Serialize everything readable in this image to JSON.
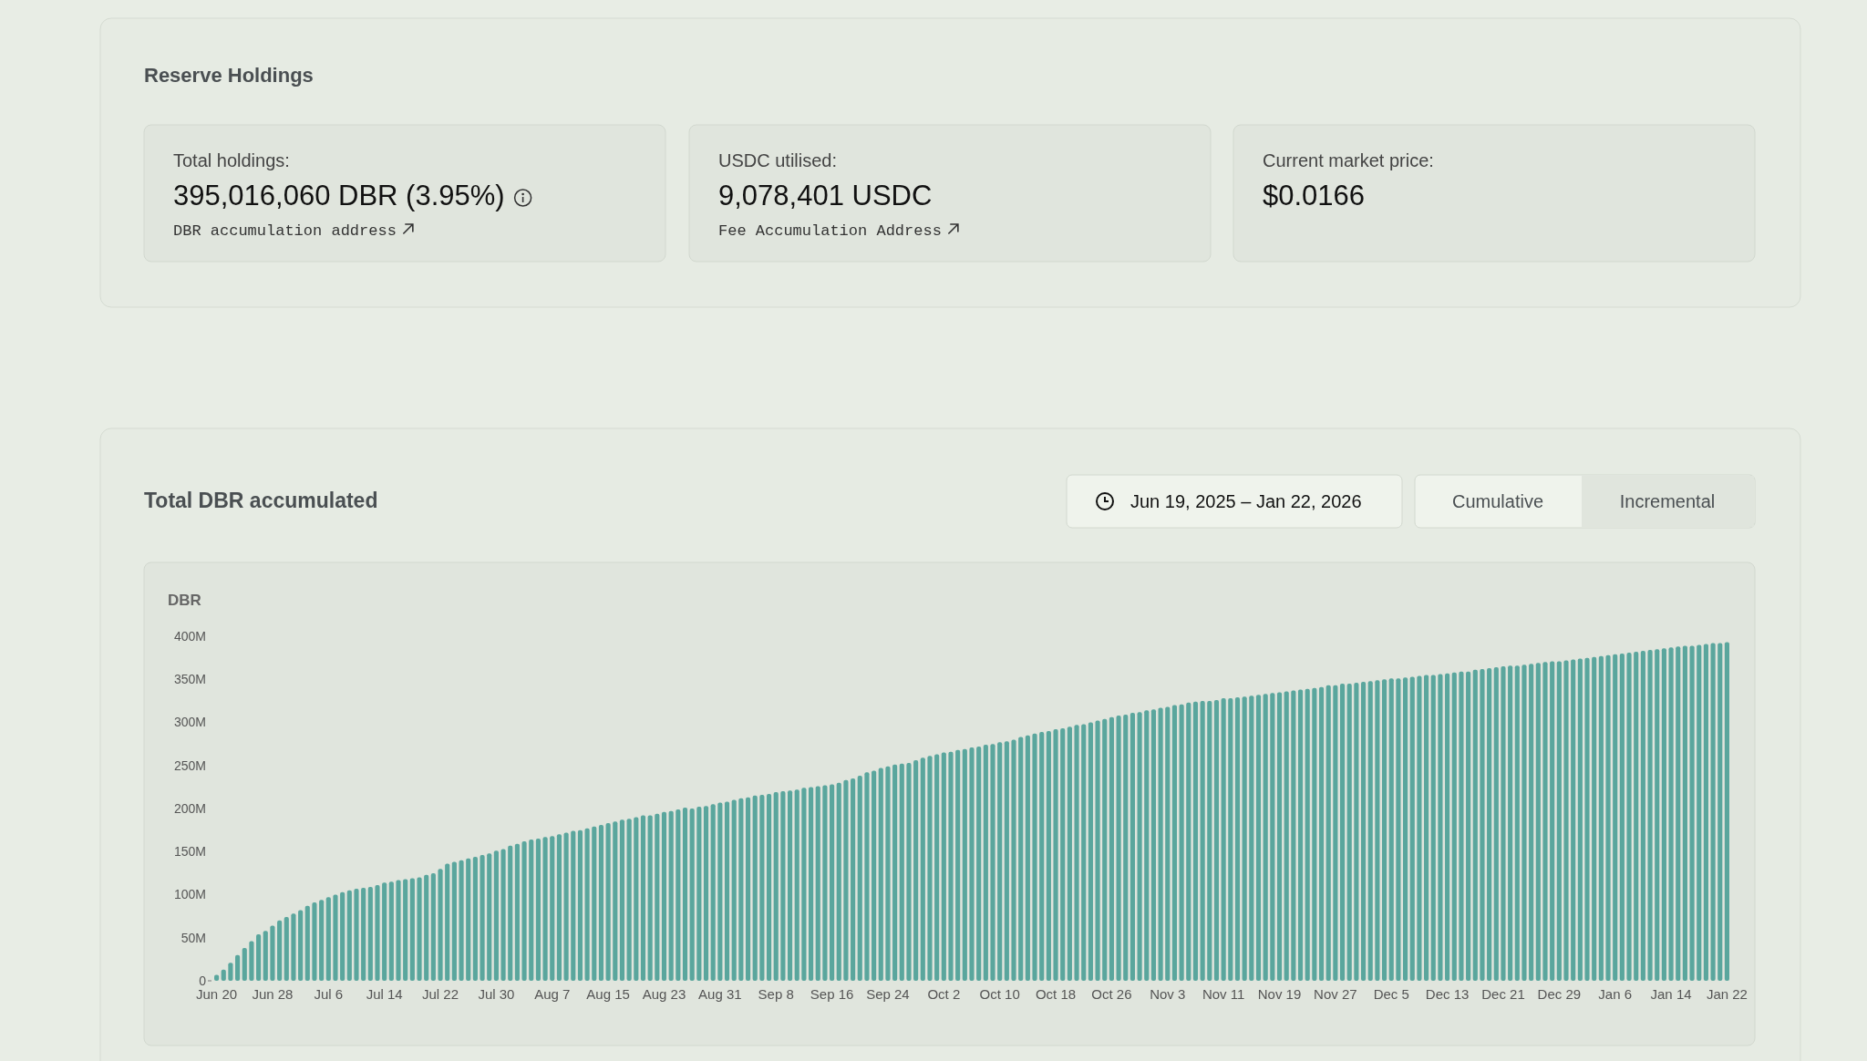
{
  "chart_data": [
    {
      "type": "other",
      "title": "Reserve Holdings",
      "annotations": [
        "Total holdings:",
        "395,016,060 DBR (3.95%)",
        "DBR accumulation address",
        "USDC utilised:",
        "9,078,401 USDC",
        "Fee Accumulation Address",
        "Current market price:",
        "$0.0166"
      ]
    },
    {
      "type": "bar",
      "title": "Total DBR accumulated",
      "ylabel": "DBR",
      "color": "#5aa69d",
      "annotations": [
        "Jun 19, 2025 – Jan 22, 2026",
        "Cumulative",
        "Incremental"
      ],
      "categories": [
        "Jun 20",
        null,
        null,
        null,
        null,
        null,
        null,
        null,
        "Jun 28",
        null,
        null,
        null,
        null,
        null,
        null,
        null,
        "Jul 6",
        null,
        null,
        null,
        null,
        null,
        null,
        null,
        "Jul 14",
        null,
        null,
        null,
        null,
        null,
        null,
        null,
        "Jul 22",
        null,
        null,
        null,
        null,
        null,
        null,
        null,
        "Jul 30",
        null,
        null,
        null,
        null,
        null,
        null,
        null,
        "Aug 7",
        null,
        null,
        null,
        null,
        null,
        null,
        null,
        "Aug 15",
        null,
        null,
        null,
        null,
        null,
        null,
        null,
        "Aug 23",
        null,
        null,
        null,
        null,
        null,
        null,
        null,
        "Aug 31",
        null,
        null,
        null,
        null,
        null,
        null,
        null,
        "Sep 8",
        null,
        null,
        null,
        null,
        null,
        null,
        null,
        "Sep 16",
        null,
        null,
        null,
        null,
        null,
        null,
        null,
        "Sep 24",
        null,
        null,
        null,
        null,
        null,
        null,
        null,
        "Oct 2",
        null,
        null,
        null,
        null,
        null,
        null,
        null,
        "Oct 10",
        null,
        null,
        null,
        null,
        null,
        null,
        null,
        "Oct 18",
        null,
        null,
        null,
        null,
        null,
        null,
        null,
        "Oct 26",
        null,
        null,
        null,
        null,
        null,
        null,
        null,
        "Nov 3",
        null,
        null,
        null,
        null,
        null,
        null,
        null,
        "Nov 11",
        null,
        null,
        null,
        null,
        null,
        null,
        null,
        "Nov 19",
        null,
        null,
        null,
        null,
        null,
        null,
        null,
        "Nov 27",
        null,
        null,
        null,
        null,
        null,
        null,
        null,
        "Dec 5",
        null,
        null,
        null,
        null,
        null,
        null,
        null,
        "Dec 13",
        null,
        null,
        null,
        null,
        null,
        null,
        null,
        "Dec 21",
        null,
        null,
        null,
        null,
        null,
        null,
        null,
        "Dec 29",
        null,
        null,
        null,
        null,
        null,
        null,
        null,
        "Jan 6",
        null,
        null,
        null,
        null,
        null,
        null,
        null,
        "Jan 14",
        null,
        null,
        null,
        null,
        null,
        null,
        null,
        "Jan 22"
      ],
      "values": [
        7,
        13,
        21,
        30,
        38,
        46,
        54,
        58,
        64,
        70,
        74,
        78,
        82,
        87,
        91,
        94,
        97,
        100,
        103,
        105,
        107,
        108,
        109,
        111,
        114,
        115,
        117,
        118,
        119,
        120,
        123,
        125,
        130,
        136,
        138,
        140,
        142,
        144,
        146,
        148,
        151,
        153,
        157,
        159,
        162,
        164,
        165,
        167,
        168,
        170,
        172,
        174,
        175,
        177,
        179,
        181,
        183,
        185,
        187,
        188,
        190,
        192,
        192,
        194,
        196,
        197,
        199,
        201,
        200,
        202,
        203,
        205,
        207,
        208,
        210,
        212,
        213,
        215,
        216,
        217,
        219,
        220,
        221,
        222,
        224,
        225,
        226,
        227,
        228,
        230,
        233,
        235,
        238,
        242,
        244,
        247,
        249,
        251,
        252,
        253,
        256,
        259,
        261,
        263,
        265,
        266,
        268,
        269,
        271,
        272,
        274,
        275,
        277,
        278,
        280,
        283,
        285,
        287,
        289,
        290,
        292,
        293,
        295,
        297,
        298,
        300,
        302,
        304,
        306,
        308,
        309,
        311,
        312,
        314,
        315,
        317,
        318,
        320,
        321,
        323,
        324,
        325,
        325,
        326,
        328,
        328,
        329,
        330,
        331,
        332,
        333,
        334,
        335,
        336,
        337,
        338,
        339,
        340,
        341,
        343,
        343,
        345,
        345,
        346,
        347,
        348,
        349,
        350,
        351,
        351,
        352,
        353,
        354,
        355,
        355,
        356,
        357,
        358,
        359,
        359,
        361,
        362,
        363,
        364,
        365,
        366,
        366,
        367,
        368,
        369,
        370,
        371,
        371,
        372,
        373,
        374,
        375,
        376,
        377,
        378,
        379,
        380,
        381,
        382,
        383,
        384,
        385,
        386,
        387,
        388,
        389,
        389,
        390,
        391,
        392,
        392,
        393
      ],
      "ylim": [
        0,
        400
      ],
      "yticks": [
        0,
        {
          "value": 50,
          "label": "50M"
        },
        {
          "value": 100,
          "label": "100M"
        },
        {
          "value": 150,
          "label": "150M"
        },
        {
          "value": 200,
          "label": "200M"
        },
        {
          "value": 250,
          "label": "250M"
        },
        {
          "value": 300,
          "label": "300M"
        },
        {
          "value": 350,
          "label": "350M"
        },
        {
          "value": 400,
          "label": "400M"
        }
      ]
    }
  ]
}
